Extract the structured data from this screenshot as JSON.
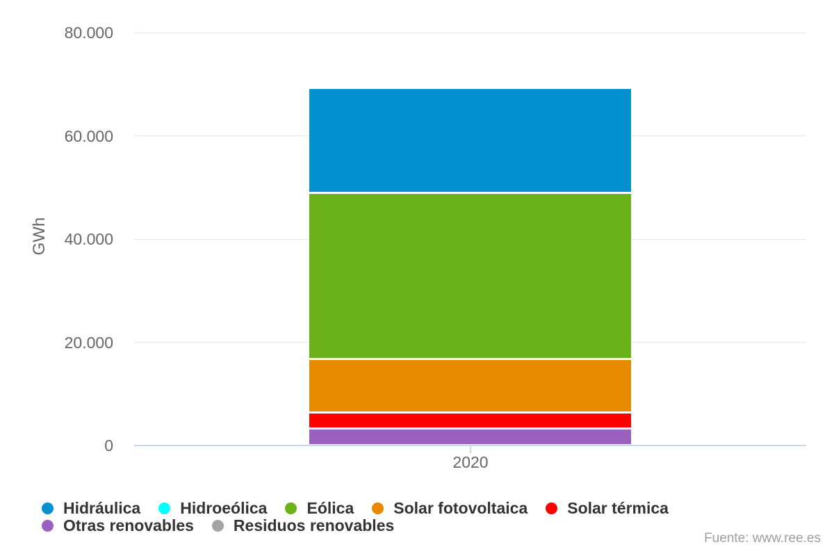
{
  "chart_data": {
    "type": "bar",
    "stacked": true,
    "title": "",
    "categories": [
      "2020"
    ],
    "series": [
      {
        "name": "Hidráulica",
        "color": "#0590cf",
        "values": [
          20450
        ]
      },
      {
        "name": "Hidroeólica",
        "color": "#00ffff",
        "values": [
          0
        ]
      },
      {
        "name": "Eólica",
        "color": "#6bb11a",
        "values": [
          32150
        ]
      },
      {
        "name": "Solar fotovoltaica",
        "color": "#e68a00",
        "values": [
          10350
        ]
      },
      {
        "name": "Solar térmica",
        "color": "#ff0000",
        "values": [
          3150
        ]
      },
      {
        "name": "Otras renovables",
        "color": "#9b5fc0",
        "values": [
          3250
        ]
      },
      {
        "name": "Residuos renovables",
        "color": "#a3a3a3",
        "values": [
          0
        ]
      }
    ],
    "stack_order_bottom_to_top": [
      "Otras renovables",
      "Solar térmica",
      "Solar fotovoltaica",
      "Eólica",
      "Hidráulica"
    ],
    "xlabel": "",
    "ylabel": "GWh",
    "ylim": [
      0,
      80000
    ],
    "yticks": [
      0,
      20000,
      40000,
      60000,
      80000
    ],
    "ytick_labels": [
      "0",
      "20.000",
      "40.000",
      "60.000",
      "80.000"
    ],
    "grid": true,
    "legend_position": "bottom",
    "colors": {
      "gridline": "#e6e6e6",
      "axis_line": "#ccd6eb",
      "tick_label": "#666666",
      "legend_text": "#333333"
    }
  },
  "source": {
    "label": "Fuente: www.ree.es"
  }
}
